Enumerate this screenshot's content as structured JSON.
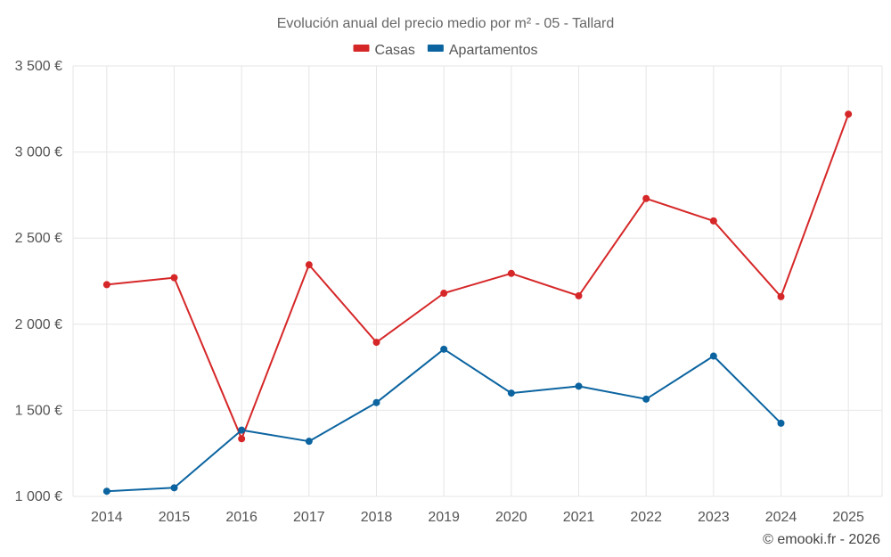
{
  "chart_data": {
    "type": "line",
    "title": "Evolución anual del precio medio por m² - 05 - Tallard",
    "credit": "© emooki.fr - 2026",
    "categories": [
      "2014",
      "2015",
      "2016",
      "2017",
      "2018",
      "2019",
      "2020",
      "2021",
      "2022",
      "2023",
      "2024",
      "2025"
    ],
    "ylim": [
      1000,
      3500
    ],
    "yticks": [
      1000,
      1500,
      2000,
      2500,
      3000,
      3500
    ],
    "ytick_labels": [
      "1 000 €",
      "1 500 €",
      "2 000 €",
      "2 500 €",
      "3 000 €",
      "3 500 €"
    ],
    "grid": true,
    "legend_position": "top-center",
    "series": [
      {
        "name": "Casas",
        "color": "#d62728",
        "values": [
          2230,
          2270,
          1335,
          2345,
          1895,
          2180,
          2295,
          2165,
          2730,
          2600,
          2160,
          3220
        ]
      },
      {
        "name": "Apartamentos",
        "color": "#0b64a0",
        "values": [
          1030,
          1050,
          1385,
          1320,
          1545,
          1855,
          1600,
          1640,
          1565,
          1815,
          1425,
          null
        ]
      }
    ]
  }
}
